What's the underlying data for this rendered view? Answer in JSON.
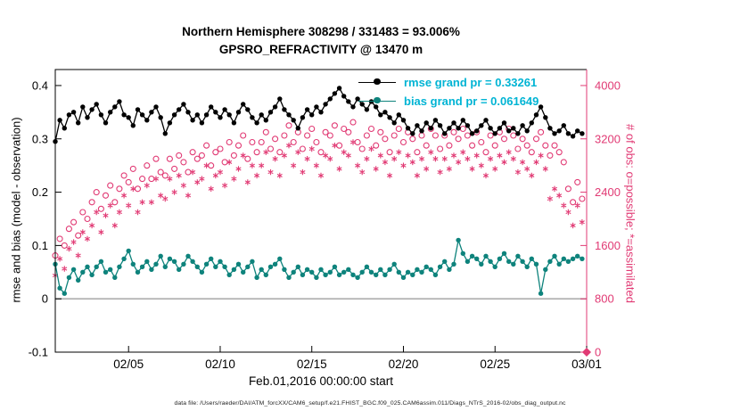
{
  "figure": {
    "title_line1": "Northern Hemisphere 308298 / 331483 = 93.006%",
    "title_line2": "GPSRO_REFRACTIVITY @ 13470 m",
    "footer": "data file: /Users/raeder/DAI/ATM_forcXX/CAM6_setup/f.e21.FHIST_BGC.f09_025.CAM6assim.011/Diags_NTrS_2016-02/obs_diag_output.nc"
  },
  "chart_data": {
    "type": "line",
    "title": "Northern Hemisphere 308298 / 331483 = 93.006%",
    "subtitle": "GPSRO_REFRACTIVITY @ 13470 m",
    "xlabel": "Feb.01,2016 00:00:00 start",
    "ylabel_left": "rmse and bias (model - observation)",
    "ylabel_right": "# of obs: o=possible; *=assimilated",
    "x_axis": {
      "range": [
        0,
        29
      ],
      "ticks": [
        4,
        9,
        14,
        19,
        24,
        29
      ],
      "tick_labels": [
        "02/05",
        "02/10",
        "02/15",
        "02/20",
        "02/25",
        "03/01"
      ]
    },
    "y_axis_left": {
      "range": [
        -0.1,
        0.43
      ],
      "ticks": [
        -0.1,
        0,
        0.1,
        0.2,
        0.3,
        0.4
      ],
      "color": "#000000"
    },
    "y_axis_right": {
      "range": [
        0,
        4240
      ],
      "ticks": [
        0,
        800,
        1600,
        2400,
        3200,
        4000
      ],
      "color": "#e13a74"
    },
    "grid": "off",
    "legend_position": "top-right-inside",
    "legend_text_color": "#00b4d4",
    "zero_line": {
      "value": 0,
      "color": "#b6b6b6"
    },
    "end_marker": {
      "symbol": "diamond",
      "x": 29,
      "value": 0,
      "color": "#e13a74"
    },
    "x_start_day": 0,
    "x_step_days": 0.25,
    "series": [
      {
        "name": "rmse",
        "legend": "rmse grand pr = 0.33261",
        "color": "#000000",
        "axis": "left",
        "marker": "dot",
        "line": true,
        "values": [
          0.295,
          0.335,
          0.32,
          0.345,
          0.35,
          0.33,
          0.36,
          0.34,
          0.355,
          0.365,
          0.345,
          0.33,
          0.35,
          0.36,
          0.37,
          0.345,
          0.34,
          0.325,
          0.355,
          0.345,
          0.335,
          0.35,
          0.36,
          0.34,
          0.31,
          0.33,
          0.345,
          0.355,
          0.365,
          0.35,
          0.335,
          0.345,
          0.33,
          0.345,
          0.36,
          0.35,
          0.34,
          0.355,
          0.345,
          0.33,
          0.35,
          0.365,
          0.355,
          0.34,
          0.33,
          0.345,
          0.335,
          0.35,
          0.36,
          0.375,
          0.355,
          0.345,
          0.335,
          0.32,
          0.34,
          0.355,
          0.345,
          0.36,
          0.35,
          0.365,
          0.375,
          0.385,
          0.395,
          0.38,
          0.37,
          0.36,
          0.375,
          0.365,
          0.355,
          0.37,
          0.36,
          0.345,
          0.35,
          0.34,
          0.33,
          0.345,
          0.335,
          0.32,
          0.31,
          0.325,
          0.315,
          0.33,
          0.32,
          0.335,
          0.325,
          0.31,
          0.32,
          0.33,
          0.32,
          0.335,
          0.325,
          0.31,
          0.315,
          0.325,
          0.335,
          0.32,
          0.31,
          0.32,
          0.33,
          0.315,
          0.32,
          0.31,
          0.325,
          0.315,
          0.33,
          0.345,
          0.36,
          0.34,
          0.32,
          0.31,
          0.315,
          0.325,
          0.31,
          0.305,
          0.315,
          0.31
        ]
      },
      {
        "name": "bias",
        "legend": "bias grand pr = 0.061649",
        "color": "#0e837c",
        "axis": "left",
        "marker": "dot",
        "line": true,
        "values": [
          0.065,
          0.02,
          0.01,
          0.04,
          0.055,
          0.035,
          0.05,
          0.06,
          0.045,
          0.06,
          0.07,
          0.05,
          0.055,
          0.04,
          0.06,
          0.075,
          0.09,
          0.065,
          0.05,
          0.06,
          0.07,
          0.055,
          0.065,
          0.08,
          0.06,
          0.075,
          0.07,
          0.055,
          0.065,
          0.08,
          0.07,
          0.06,
          0.05,
          0.065,
          0.075,
          0.06,
          0.07,
          0.06,
          0.045,
          0.055,
          0.065,
          0.05,
          0.06,
          0.07,
          0.04,
          0.055,
          0.045,
          0.06,
          0.065,
          0.075,
          0.055,
          0.04,
          0.05,
          0.06,
          0.045,
          0.055,
          0.05,
          0.04,
          0.055,
          0.045,
          0.05,
          0.06,
          0.045,
          0.05,
          0.055,
          0.045,
          0.04,
          0.05,
          0.06,
          0.05,
          0.045,
          0.055,
          0.045,
          0.055,
          0.065,
          0.05,
          0.04,
          0.05,
          0.045,
          0.055,
          0.05,
          0.06,
          0.055,
          0.045,
          0.06,
          0.07,
          0.055,
          0.065,
          0.11,
          0.085,
          0.07,
          0.08,
          0.075,
          0.065,
          0.08,
          0.07,
          0.06,
          0.075,
          0.085,
          0.07,
          0.065,
          0.08,
          0.07,
          0.06,
          0.075,
          0.065,
          0.01,
          0.055,
          0.07,
          0.08,
          0.065,
          0.075,
          0.07,
          0.075,
          0.08,
          0.075
        ]
      },
      {
        "name": "possible_obs",
        "legend": "o=possible",
        "color": "#e13a74",
        "axis": "right",
        "marker": "circle",
        "line": false,
        "values": [
          1450,
          1700,
          1600,
          1850,
          1950,
          1750,
          2100,
          2000,
          2250,
          2400,
          2150,
          2350,
          2500,
          2250,
          2450,
          2650,
          2550,
          2750,
          2450,
          2600,
          2800,
          2600,
          2900,
          2700,
          2650,
          2900,
          2750,
          2950,
          2850,
          2700,
          3000,
          2900,
          2950,
          3100,
          2800,
          3000,
          3050,
          2850,
          3150,
          2950,
          3100,
          3250,
          2900,
          3150,
          3000,
          3150,
          3300,
          3050,
          3200,
          3000,
          3250,
          3400,
          3150,
          3300,
          3050,
          3250,
          3350,
          3150,
          3000,
          3300,
          3250,
          3400,
          3100,
          3350,
          3300,
          3450,
          3150,
          3050,
          3250,
          3350,
          3100,
          3300,
          3200,
          3000,
          3250,
          3350,
          3150,
          3300,
          3200,
          3000,
          3250,
          3100,
          3350,
          3250,
          3050,
          3250,
          3100,
          3300,
          3200,
          3350,
          3250,
          3100,
          3300,
          3150,
          3000,
          3250,
          3100,
          3300,
          3200,
          3350,
          3250,
          3050,
          3200,
          3100,
          3000,
          3200,
          3300,
          3100,
          2950,
          3100,
          3000,
          2850,
          2450,
          2250,
          2550,
          2300
        ]
      },
      {
        "name": "assimilated_obs",
        "legend": "*=assimilated",
        "color": "#e13a74",
        "axis": "right",
        "marker": "asterisk",
        "line": false,
        "values": [
          1150,
          1400,
          1250,
          1550,
          1650,
          1450,
          1800,
          1700,
          1900,
          2100,
          1800,
          2050,
          2200,
          1900,
          2100,
          2350,
          2200,
          2450,
          2100,
          2250,
          2500,
          2250,
          2600,
          2350,
          2300,
          2600,
          2400,
          2650,
          2500,
          2350,
          2700,
          2550,
          2600,
          2800,
          2450,
          2650,
          2700,
          2500,
          2850,
          2600,
          2750,
          2950,
          2550,
          2800,
          2650,
          2800,
          3000,
          2700,
          2900,
          2650,
          2950,
          3100,
          2800,
          3000,
          2700,
          2900,
          3050,
          2800,
          2650,
          2950,
          2900,
          3100,
          2750,
          3000,
          2950,
          3150,
          2800,
          2700,
          2900,
          3050,
          2750,
          2950,
          2850,
          2650,
          2900,
          3000,
          2800,
          2950,
          2850,
          2650,
          2900,
          2750,
          3000,
          2900,
          2700,
          2900,
          2750,
          2950,
          2850,
          3000,
          2900,
          2750,
          2950,
          2800,
          2650,
          2900,
          2750,
          2950,
          2850,
          3000,
          2900,
          2700,
          2850,
          2750,
          2650,
          2850,
          2950,
          2750,
          2300,
          2450,
          2350,
          2200,
          2100,
          1900,
          2200,
          1950
        ]
      }
    ]
  }
}
